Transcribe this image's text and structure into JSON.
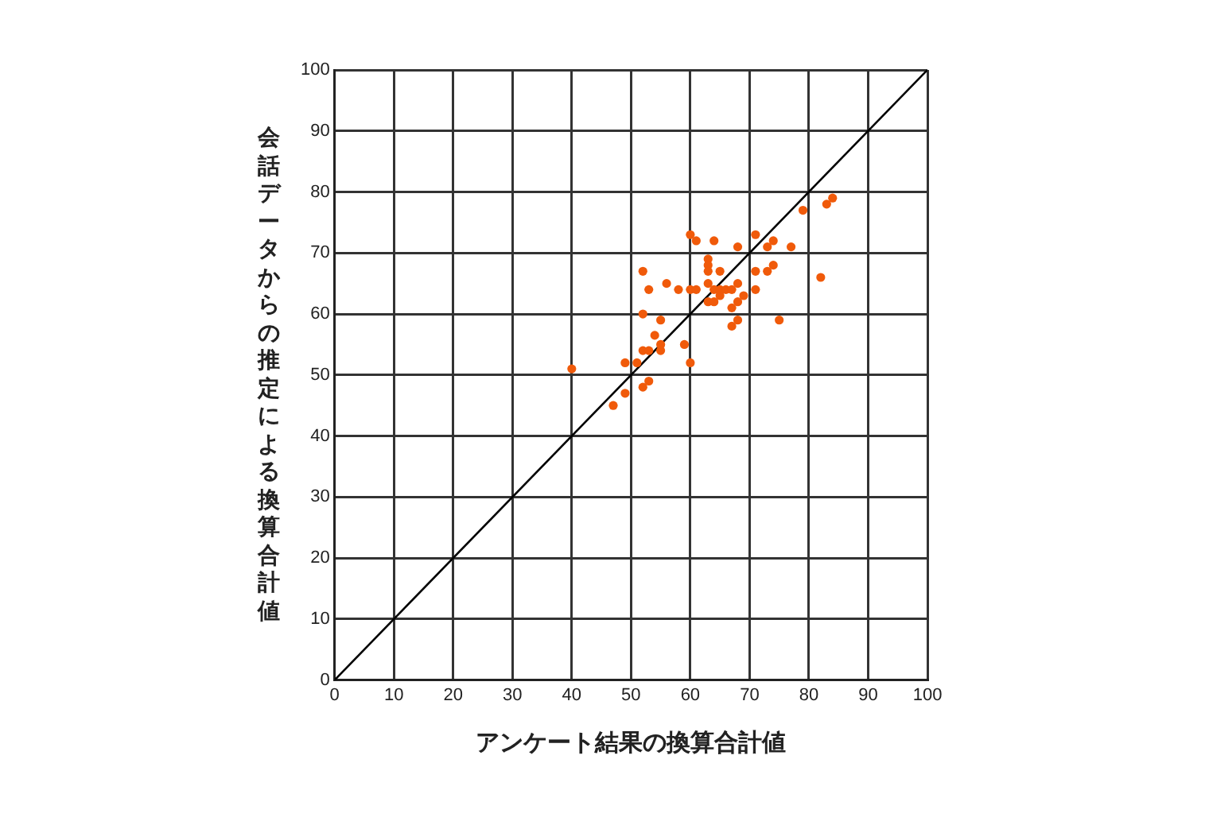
{
  "chart_data": {
    "type": "scatter",
    "xlabel": "アンケート結果の換算合計値",
    "ylabel": "会話データからの推定による換算合計値",
    "xlim": [
      0,
      100
    ],
    "ylim": [
      0,
      100
    ],
    "xticks": [
      0,
      10,
      20,
      30,
      40,
      50,
      60,
      70,
      80,
      90,
      100
    ],
    "yticks": [
      0,
      10,
      20,
      30,
      40,
      50,
      60,
      70,
      80,
      90,
      100
    ],
    "grid": true,
    "legend": false,
    "series": [
      {
        "marker": "circle",
        "color": "#f05a0a",
        "x": [
          40,
          47,
          49,
          52,
          53,
          49,
          51,
          52,
          53,
          55,
          55,
          54,
          55,
          52,
          59,
          60,
          52,
          53,
          56,
          58,
          60,
          61,
          60,
          61,
          64,
          63,
          63,
          63,
          65,
          63,
          64,
          65,
          63,
          64,
          65,
          66,
          67,
          68,
          69,
          68,
          67,
          68,
          67,
          71,
          71,
          73,
          74,
          75,
          68,
          71,
          73,
          74,
          77,
          79,
          82,
          83,
          84
        ],
        "values": [
          51,
          45,
          47,
          48,
          49,
          52,
          52,
          54,
          54,
          54,
          55,
          56.5,
          59,
          60,
          55,
          52,
          67,
          64,
          65,
          64,
          64,
          64,
          73,
          72,
          72,
          69,
          68,
          67,
          67,
          65,
          64,
          63,
          62,
          62,
          64,
          64,
          64,
          65,
          63,
          62,
          61,
          59,
          58,
          64,
          67,
          67,
          68,
          59,
          71,
          73,
          71,
          72,
          71,
          77,
          66,
          78,
          79
        ]
      },
      {
        "type": "line",
        "color": "#000000",
        "x": [
          0,
          100
        ],
        "values": [
          0,
          100
        ]
      }
    ]
  }
}
